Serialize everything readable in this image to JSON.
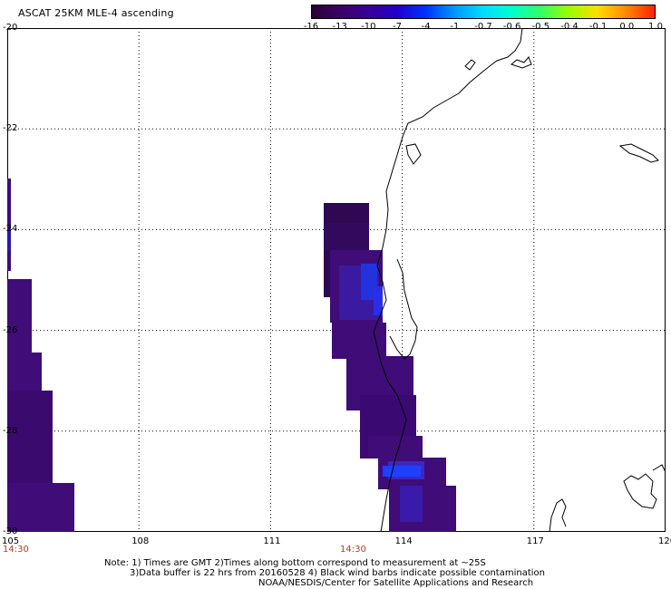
{
  "title": "ASCAT 25KM MLE-4 ascending",
  "colorbar": {
    "labels": [
      "-16",
      "-13",
      "-10",
      "-7",
      "-4",
      "-1",
      "-0.7",
      "-0.6",
      "-0.5",
      "-0.4",
      "-0.1",
      "0.0",
      "1.0"
    ],
    "colors": [
      "#2a0033",
      "#3d0066",
      "#3a0099",
      "#2200cc",
      "#0033ff",
      "#0099ff",
      "#00ddff",
      "#00ffcc",
      "#33ff66",
      "#99ff00",
      "#ffdd00",
      "#ff8800",
      "#ff2200"
    ]
  },
  "axes": {
    "x_ticks": [
      "105",
      "108",
      "111",
      "114",
      "117",
      "120"
    ],
    "y_ticks": [
      "-20",
      "-22",
      "-24",
      "-26",
      "-28",
      "-30"
    ]
  },
  "times": [
    "14:30",
    "14:30"
  ],
  "note": {
    "line1": "Note: 1) Times are GMT 2)Times along bottom correspond to measurement at ~25S",
    "line2": "3)Data buffer is 22 hrs from 20160528 4) Black wind barbs indicate possible contamination",
    "line3": "NOAA/NESDIS/Center for Satellite Applications and Research"
  },
  "swaths": [
    {
      "name": "left-swath",
      "color": "#3f0c78",
      "accent": "#2a1aa8"
    },
    {
      "name": "center-swath",
      "color": "#3f0c78",
      "accent": "#2233dd"
    }
  ]
}
